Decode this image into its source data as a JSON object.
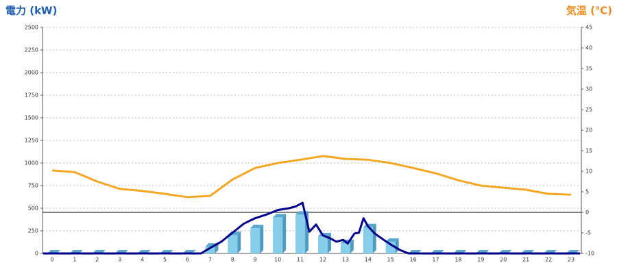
{
  "chart_data": {
    "type": "bar",
    "ylabel": "電力 (kW)",
    "y2label": "気温 (℃)",
    "categories": [
      "0",
      "1",
      "2",
      "3",
      "4",
      "5",
      "6",
      "7",
      "8",
      "9",
      "10",
      "11",
      "12",
      "13",
      "14",
      "15",
      "16",
      "17",
      "18",
      "19",
      "20",
      "21",
      "22",
      "23"
    ],
    "ylim": [
      0,
      2500
    ],
    "yticks": [
      0,
      250,
      500,
      750,
      1000,
      1250,
      1500,
      1750,
      2000,
      2250,
      2500
    ],
    "y2lim": [
      -10,
      45
    ],
    "y2ticks": [
      -10,
      -5,
      0,
      5,
      10,
      15,
      20,
      25,
      30,
      35,
      40,
      45
    ],
    "grid": true,
    "series": [
      {
        "type": "bar",
        "color": "#87ceeb",
        "values": [
          0,
          0,
          0,
          0,
          0,
          0,
          0,
          75,
          205,
          280,
          400,
          430,
          190,
          115,
          290,
          130,
          0,
          0,
          0,
          0,
          0,
          0,
          0,
          0
        ]
      },
      {
        "type": "line",
        "color": "#00008b",
        "x": [
          -0.4,
          6.6,
          7,
          7.5,
          8,
          8.5,
          9,
          9.5,
          10,
          10.5,
          10.8,
          11.1,
          11.4,
          11.7,
          12,
          12.3,
          12.6,
          12.9,
          13.1,
          13.4,
          13.6,
          13.8,
          14,
          14.3,
          14.7,
          15,
          15.4,
          15.8,
          23.4
        ],
        "values": [
          0,
          0,
          60,
          130,
          230,
          330,
          390,
          430,
          480,
          500,
          520,
          560,
          240,
          320,
          200,
          170,
          130,
          150,
          110,
          220,
          230,
          390,
          300,
          220,
          150,
          100,
          40,
          0,
          0
        ]
      },
      {
        "type": "line",
        "color": "#f5a623",
        "axis": "y2",
        "values": [
          10.2,
          9.8,
          7.5,
          5.7,
          5.2,
          4.5,
          3.7,
          4.0,
          8.0,
          10.8,
          12.0,
          12.8,
          13.7,
          13.0,
          12.8,
          12.0,
          10.8,
          9.5,
          7.8,
          6.5,
          6.0,
          5.5,
          4.5,
          4.3
        ]
      }
    ]
  }
}
